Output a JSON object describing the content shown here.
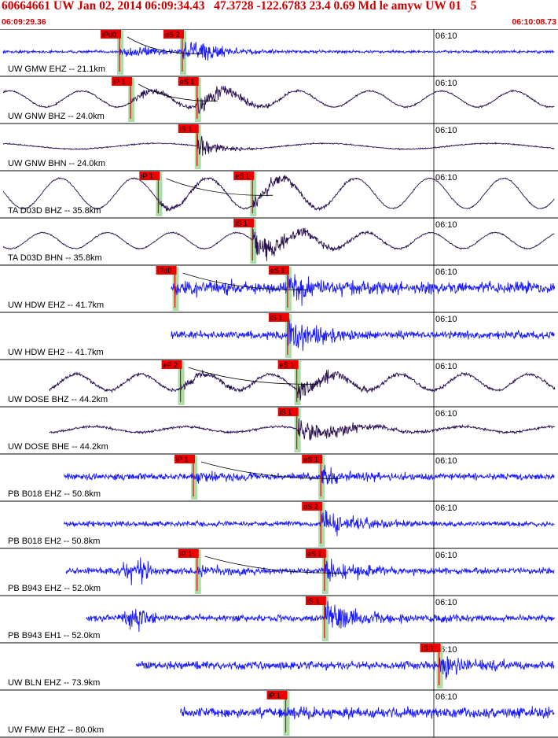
{
  "header": {
    "title": "60664661 UW Jan 02, 2014 06:09:34.43   47.3728 -122.6783 23.4 0.69 Md le amyw UW 01   5",
    "start_time": "06:09:29.36",
    "end_time": "06:10:08.73"
  },
  "colors": {
    "vertical_trace": "#1a1aff",
    "horizontal_trace": "#2a1050",
    "pick_box": "#ee0000",
    "pick_band": "#9ad89a",
    "header_text": "#d00000"
  },
  "chart_data": {
    "type": "line",
    "title": "60664661 UW Jan 02, 2014 06:09:34.43   47.3728 -122.6783 23.4 0.69 Md le amyw UW 01   5",
    "x_axis": {
      "start": "06:09:29.36",
      "end": "06:10:08.73",
      "tick_label": "06:10",
      "grid": "single vertical line at 06:10"
    },
    "traces": [
      {
        "label": "UW GMW EHZ -- 21.1km",
        "component": "EHZ",
        "color": "vertical",
        "time_label": "06:10",
        "picks": [
          {
            "label": "iPd0",
            "phase": "P",
            "time_s": 6.3
          },
          {
            "label": "eS 2",
            "phase": "S",
            "time_s": 9.7
          }
        ],
        "data_start_s": 0.0,
        "data_end_s": 36.2,
        "amplitude": 0.45,
        "noise": 0.04,
        "period": 0.25,
        "bg": "noise",
        "coda": 1.0
      },
      {
        "label": "UW GNW BHZ -- 24.0km",
        "component": "BHZ",
        "color": "horizontal",
        "time_label": "06:10",
        "picks": [
          {
            "label": "iP 1",
            "phase": "P",
            "time_s": 6.9
          },
          {
            "label": "eS 1",
            "phase": "S",
            "time_s": 10.5
          }
        ],
        "data_start_s": 0.0,
        "data_end_s": 36.6,
        "amplitude": 0.35,
        "noise": 0.04,
        "period": 3.9,
        "bg": "wave",
        "coda": 1.0
      },
      {
        "label": "UW GNW BHN -- 24.0km",
        "component": "BHN",
        "color": "horizontal",
        "time_label": "06:10",
        "picks": [
          {
            "label": "iS 1",
            "phase": "S",
            "time_s": 10.5
          }
        ],
        "data_start_s": 0.0,
        "data_end_s": 36.6,
        "amplitude": 0.4,
        "noise": 0.03,
        "period": 9.0,
        "bg": "wave-small",
        "coda": 0.5
      },
      {
        "label": "TA D03D BHZ -- 35.8km",
        "component": "BHZ",
        "color": "horizontal",
        "time_label": "06:10",
        "picks": [
          {
            "label": "iP 1",
            "phase": "P",
            "time_s": 8.4
          },
          {
            "label": "eS 1",
            "phase": "S",
            "time_s": 13.5
          }
        ],
        "data_start_s": 0.0,
        "data_end_s": 38.2,
        "amplitude": 0.3,
        "noise": 0.03,
        "period": 4.0,
        "bg": "wave-big",
        "coda": 1.0
      },
      {
        "label": "TA D03D BHN -- 35.8km",
        "component": "BHN",
        "color": "horizontal",
        "time_label": "06:10",
        "picks": [
          {
            "label": "iS 1",
            "phase": "S",
            "time_s": 13.5
          }
        ],
        "data_start_s": 0.0,
        "data_end_s": 38.2,
        "amplitude": 0.45,
        "noise": 0.03,
        "period": 3.5,
        "bg": "wave",
        "coda": 1.2
      },
      {
        "label": "UW HDW EHZ -- 41.7km",
        "component": "EHZ",
        "color": "vertical",
        "time_label": "06:10",
        "picks": [
          {
            "label": "iPd0",
            "phase": "P",
            "time_s": 9.3
          },
          {
            "label": "eS 1",
            "phase": "S",
            "time_s": 15.4
          }
        ],
        "data_start_s": 9.1,
        "data_end_s": 39.0,
        "amplitude": 0.45,
        "noise": 0.18,
        "period": 0.2,
        "bg": "noise",
        "coda": 1.0
      },
      {
        "label": "UW HDW EH2 -- 41.7km",
        "component": "EH2",
        "color": "vertical",
        "time_label": "06:10",
        "picks": [
          {
            "label": "iS 1",
            "phase": "S",
            "time_s": 15.4
          }
        ],
        "data_start_s": 9.1,
        "data_end_s": 39.0,
        "amplitude": 0.5,
        "noise": 0.12,
        "period": 0.2,
        "bg": "noise",
        "coda": 1.0
      },
      {
        "label": "UW DOSE BHZ -- 44.2km",
        "component": "BHZ",
        "color": "horizontal",
        "time_label": "06:10",
        "picks": [
          {
            "label": "eP 2",
            "phase": "P",
            "time_s": 9.6
          },
          {
            "label": "eS 1",
            "phase": "S",
            "time_s": 15.9
          }
        ],
        "data_start_s": 2.5,
        "data_end_s": 39.6,
        "amplitude": 0.35,
        "noise": 0.08,
        "period": 3.5,
        "bg": "wave",
        "coda": 1.0
      },
      {
        "label": "UW DOSE BHE -- 44.2km",
        "component": "BHE",
        "color": "horizontal",
        "time_label": "06:10",
        "picks": [
          {
            "label": "iS 1",
            "phase": "S",
            "time_s": 15.9
          }
        ],
        "data_start_s": 2.5,
        "data_end_s": 39.6,
        "amplitude": 0.4,
        "noise": 0.06,
        "period": 5.0,
        "bg": "wave-small",
        "coda": 1.3
      },
      {
        "label": "PB B018 EHZ -- 50.8km",
        "component": "EHZ",
        "color": "vertical",
        "time_label": "06:10",
        "picks": [
          {
            "label": "iP 1",
            "phase": "P",
            "time_s": 10.3
          },
          {
            "label": "eS 1",
            "phase": "S",
            "time_s": 17.2
          }
        ],
        "data_start_s": 3.3,
        "data_end_s": 40.8,
        "amplitude": 0.4,
        "noise": 0.1,
        "period": 0.2,
        "bg": "noise",
        "coda": 1.0
      },
      {
        "label": "PB B018 EH2 -- 50.8km",
        "component": "EH2",
        "color": "vertical",
        "time_label": "06:10",
        "picks": [
          {
            "label": "eS 2",
            "phase": "S",
            "time_s": 17.2
          }
        ],
        "data_start_s": 3.3,
        "data_end_s": 40.8,
        "amplitude": 0.5,
        "noise": 0.08,
        "period": 0.2,
        "bg": "noise",
        "coda": 1.0
      },
      {
        "label": "PB B943 EHZ -- 52.0km",
        "component": "EHZ",
        "color": "vertical",
        "time_label": "06:10",
        "picks": [
          {
            "label": "iP 1",
            "phase": "P",
            "time_s": 10.5
          },
          {
            "label": "eS 1",
            "phase": "S",
            "time_s": 17.4
          }
        ],
        "data_start_s": 3.4,
        "data_end_s": 40.8,
        "amplitude": 0.4,
        "noise": 0.1,
        "period": 0.2,
        "bg": "noise-burst",
        "coda": 1.0
      },
      {
        "label": "PB B943 EH1 -- 52.0km",
        "component": "EH1",
        "color": "vertical",
        "time_label": "06:10",
        "picks": [
          {
            "label": "iS 1",
            "phase": "S",
            "time_s": 17.4
          }
        ],
        "data_start_s": 4.5,
        "data_end_s": 40.8,
        "amplitude": 0.5,
        "noise": 0.1,
        "period": 0.2,
        "bg": "noise-burst",
        "coda": 1.0
      },
      {
        "label": "UW BLN EHZ -- 73.9km",
        "component": "EHZ",
        "color": "vertical",
        "time_label": "06:10",
        "picks": [
          {
            "label": "iS 1",
            "phase": "S",
            "time_s": 23.6
          }
        ],
        "data_start_s": 7.2,
        "data_end_s": 44.5,
        "amplitude": 0.45,
        "noise": 0.12,
        "period": 0.4,
        "bg": "noise",
        "coda": 1.0
      },
      {
        "label": "UW FMW EHZ -- 80.0km",
        "component": "EHZ",
        "color": "vertical",
        "time_label": "06:10",
        "picks": [
          {
            "label": "iP 1",
            "phase": "P",
            "time_s": 15.3
          }
        ],
        "data_start_s": 9.6,
        "data_end_s": 39.4,
        "amplitude": 0.35,
        "noise": 0.15,
        "period": 0.2,
        "bg": "noise",
        "coda": 1.5
      }
    ]
  }
}
